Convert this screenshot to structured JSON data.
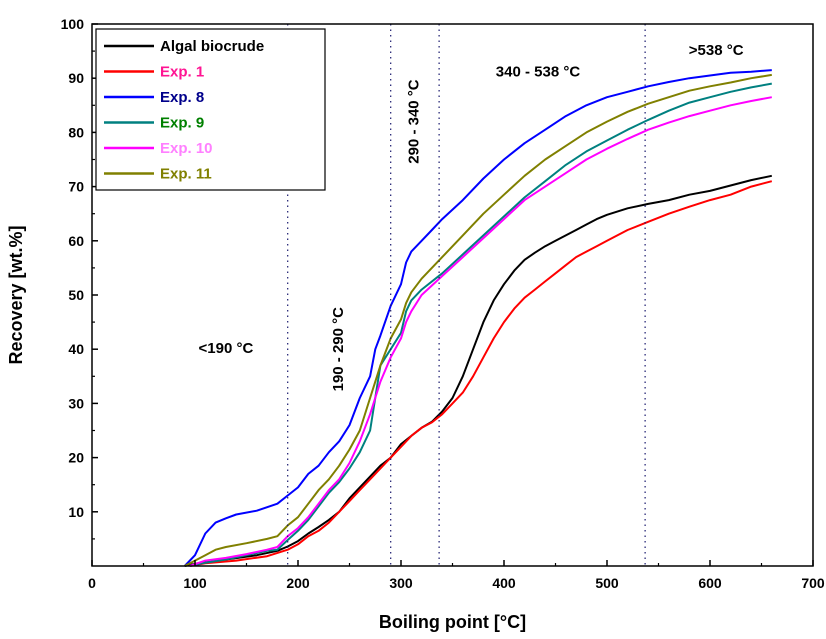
{
  "chart_data": {
    "type": "line",
    "title": "",
    "xlabel": "Boiling point [°C]",
    "ylabel": "Recovery [wt.%]",
    "xlim": [
      0,
      700
    ],
    "ylim": [
      0,
      100
    ],
    "xticks": [
      0,
      100,
      200,
      300,
      400,
      500,
      600,
      700
    ],
    "yticks": [
      10,
      20,
      30,
      40,
      50,
      60,
      70,
      80,
      90,
      100
    ],
    "grid": false,
    "legend_position": "top-left",
    "cut_lines": [
      190,
      290,
      337,
      537
    ],
    "regions": [
      {
        "label": "<190 °C",
        "x": 130,
        "y": 40,
        "rotated": false
      },
      {
        "label": "190 - 290 °C",
        "x": 240,
        "y": 40,
        "rotated": true
      },
      {
        "label": "290 - 340 °C",
        "x": 313,
        "y": 82,
        "rotated": true
      },
      {
        "label": "340 - 538 °C",
        "x": 433,
        "y": 91,
        "rotated": false
      },
      {
        "label": ">538 °C",
        "x": 606,
        "y": 95,
        "rotated": false
      }
    ],
    "series": [
      {
        "name": "Algal biocrude",
        "color": "#000000",
        "legend_color": "#000000",
        "points": [
          [
            90,
            0
          ],
          [
            100,
            0.4
          ],
          [
            130,
            1.2
          ],
          [
            160,
            2
          ],
          [
            180,
            2.8
          ],
          [
            190,
            3.6
          ],
          [
            200,
            4.6
          ],
          [
            210,
            6
          ],
          [
            220,
            7.2
          ],
          [
            230,
            8.5
          ],
          [
            240,
            10
          ],
          [
            250,
            12.5
          ],
          [
            260,
            14.5
          ],
          [
            270,
            16.5
          ],
          [
            280,
            18.5
          ],
          [
            290,
            20
          ],
          [
            300,
            22.5
          ],
          [
            310,
            24
          ],
          [
            320,
            25.5
          ],
          [
            330,
            26.6
          ],
          [
            340,
            28.5
          ],
          [
            350,
            31
          ],
          [
            360,
            35
          ],
          [
            370,
            40
          ],
          [
            380,
            45
          ],
          [
            390,
            49
          ],
          [
            400,
            52
          ],
          [
            410,
            54.5
          ],
          [
            420,
            56.5
          ],
          [
            430,
            57.8
          ],
          [
            440,
            59
          ],
          [
            450,
            60
          ],
          [
            460,
            61
          ],
          [
            470,
            62
          ],
          [
            480,
            63
          ],
          [
            490,
            64
          ],
          [
            500,
            64.8
          ],
          [
            520,
            66
          ],
          [
            540,
            66.8
          ],
          [
            560,
            67.5
          ],
          [
            580,
            68.5
          ],
          [
            600,
            69.2
          ],
          [
            620,
            70.2
          ],
          [
            640,
            71.2
          ],
          [
            660,
            72
          ]
        ]
      },
      {
        "name": "Exp. 1",
        "color": "#ff0000",
        "legend_color": "#ff1493",
        "points": [
          [
            95,
            0
          ],
          [
            110,
            0.5
          ],
          [
            140,
            1
          ],
          [
            170,
            1.8
          ],
          [
            190,
            3
          ],
          [
            200,
            4
          ],
          [
            210,
            5.5
          ],
          [
            220,
            6.5
          ],
          [
            230,
            8
          ],
          [
            240,
            10
          ],
          [
            250,
            12
          ],
          [
            260,
            14
          ],
          [
            270,
            16
          ],
          [
            280,
            18
          ],
          [
            290,
            20
          ],
          [
            300,
            22
          ],
          [
            310,
            24
          ],
          [
            320,
            25.5
          ],
          [
            330,
            26.5
          ],
          [
            340,
            28
          ],
          [
            350,
            30
          ],
          [
            360,
            32
          ],
          [
            370,
            35
          ],
          [
            380,
            38.5
          ],
          [
            390,
            42
          ],
          [
            400,
            45
          ],
          [
            410,
            47.5
          ],
          [
            420,
            49.5
          ],
          [
            430,
            51
          ],
          [
            440,
            52.5
          ],
          [
            450,
            54
          ],
          [
            460,
            55.5
          ],
          [
            470,
            57
          ],
          [
            480,
            58
          ],
          [
            490,
            59
          ],
          [
            500,
            60
          ],
          [
            510,
            61
          ],
          [
            520,
            62
          ],
          [
            540,
            63.5
          ],
          [
            560,
            65
          ],
          [
            580,
            66.3
          ],
          [
            600,
            67.5
          ],
          [
            620,
            68.5
          ],
          [
            640,
            70
          ],
          [
            660,
            71
          ]
        ]
      },
      {
        "name": "Exp. 8",
        "color": "#0000ff",
        "legend_color": "#00008b",
        "points": [
          [
            90,
            0
          ],
          [
            100,
            2
          ],
          [
            110,
            6
          ],
          [
            120,
            8
          ],
          [
            130,
            8.8
          ],
          [
            140,
            9.5
          ],
          [
            160,
            10.2
          ],
          [
            180,
            11.5
          ],
          [
            190,
            13
          ],
          [
            200,
            14.5
          ],
          [
            210,
            17
          ],
          [
            220,
            18.5
          ],
          [
            230,
            21
          ],
          [
            240,
            23
          ],
          [
            250,
            26
          ],
          [
            260,
            31
          ],
          [
            270,
            35
          ],
          [
            275,
            40
          ],
          [
            280,
            42.5
          ],
          [
            290,
            48
          ],
          [
            300,
            52
          ],
          [
            305,
            56
          ],
          [
            310,
            58
          ],
          [
            320,
            60
          ],
          [
            330,
            62
          ],
          [
            340,
            64
          ],
          [
            360,
            67.5
          ],
          [
            380,
            71.5
          ],
          [
            400,
            75
          ],
          [
            420,
            78
          ],
          [
            440,
            80.5
          ],
          [
            460,
            83
          ],
          [
            480,
            85
          ],
          [
            500,
            86.5
          ],
          [
            520,
            87.5
          ],
          [
            540,
            88.5
          ],
          [
            560,
            89.3
          ],
          [
            580,
            90
          ],
          [
            600,
            90.5
          ],
          [
            620,
            91
          ],
          [
            640,
            91.2
          ],
          [
            660,
            91.5
          ]
        ]
      },
      {
        "name": "Exp. 9",
        "color": "#008080",
        "legend_color": "#008000",
        "points": [
          [
            95,
            0
          ],
          [
            110,
            0.6
          ],
          [
            130,
            1.2
          ],
          [
            150,
            2
          ],
          [
            170,
            2.8
          ],
          [
            180,
            3
          ],
          [
            190,
            4.8
          ],
          [
            200,
            6.5
          ],
          [
            210,
            8.5
          ],
          [
            220,
            11
          ],
          [
            230,
            13.5
          ],
          [
            240,
            15.5
          ],
          [
            250,
            18
          ],
          [
            260,
            21
          ],
          [
            270,
            25
          ],
          [
            280,
            37
          ],
          [
            290,
            40
          ],
          [
            300,
            43
          ],
          [
            305,
            47
          ],
          [
            310,
            49
          ],
          [
            320,
            51
          ],
          [
            340,
            54
          ],
          [
            360,
            57.5
          ],
          [
            380,
            61
          ],
          [
            400,
            64.5
          ],
          [
            420,
            68
          ],
          [
            440,
            71
          ],
          [
            460,
            74
          ],
          [
            480,
            76.5
          ],
          [
            500,
            78.5
          ],
          [
            520,
            80.5
          ],
          [
            540,
            82.3
          ],
          [
            560,
            84
          ],
          [
            580,
            85.5
          ],
          [
            600,
            86.5
          ],
          [
            620,
            87.5
          ],
          [
            640,
            88.3
          ],
          [
            660,
            89
          ]
        ]
      },
      {
        "name": "Exp. 10",
        "color": "#ff00ff",
        "legend_color": "#ff80ff",
        "points": [
          [
            95,
            0
          ],
          [
            110,
            1
          ],
          [
            130,
            1.5
          ],
          [
            150,
            2.2
          ],
          [
            170,
            3
          ],
          [
            180,
            3.5
          ],
          [
            190,
            5.5
          ],
          [
            200,
            7
          ],
          [
            210,
            9
          ],
          [
            220,
            11.5
          ],
          [
            230,
            14
          ],
          [
            240,
            16
          ],
          [
            250,
            19
          ],
          [
            260,
            23
          ],
          [
            270,
            28
          ],
          [
            280,
            34
          ],
          [
            290,
            38.5
          ],
          [
            300,
            42
          ],
          [
            305,
            45
          ],
          [
            310,
            47
          ],
          [
            320,
            50
          ],
          [
            340,
            53.5
          ],
          [
            360,
            57
          ],
          [
            380,
            60.5
          ],
          [
            400,
            64
          ],
          [
            420,
            67.5
          ],
          [
            440,
            70
          ],
          [
            460,
            72.5
          ],
          [
            480,
            75
          ],
          [
            500,
            77
          ],
          [
            520,
            78.8
          ],
          [
            540,
            80.5
          ],
          [
            560,
            81.8
          ],
          [
            580,
            83
          ],
          [
            600,
            84
          ],
          [
            620,
            85
          ],
          [
            640,
            85.8
          ],
          [
            660,
            86.5
          ]
        ]
      },
      {
        "name": "Exp. 11",
        "color": "#808000",
        "legend_color": "#808000",
        "points": [
          [
            90,
            0
          ],
          [
            100,
            1
          ],
          [
            110,
            2
          ],
          [
            120,
            3
          ],
          [
            130,
            3.5
          ],
          [
            150,
            4.2
          ],
          [
            170,
            5
          ],
          [
            180,
            5.5
          ],
          [
            190,
            7.5
          ],
          [
            200,
            9
          ],
          [
            210,
            11.5
          ],
          [
            220,
            14
          ],
          [
            230,
            16
          ],
          [
            240,
            18.5
          ],
          [
            250,
            21.5
          ],
          [
            260,
            25
          ],
          [
            270,
            31
          ],
          [
            280,
            37
          ],
          [
            290,
            42
          ],
          [
            300,
            45.5
          ],
          [
            305,
            48.5
          ],
          [
            310,
            50.5
          ],
          [
            320,
            53
          ],
          [
            340,
            57
          ],
          [
            360,
            61
          ],
          [
            380,
            65
          ],
          [
            400,
            68.5
          ],
          [
            420,
            72
          ],
          [
            440,
            75
          ],
          [
            460,
            77.5
          ],
          [
            480,
            80
          ],
          [
            500,
            82
          ],
          [
            520,
            83.8
          ],
          [
            540,
            85.3
          ],
          [
            560,
            86.5
          ],
          [
            580,
            87.7
          ],
          [
            600,
            88.5
          ],
          [
            620,
            89.2
          ],
          [
            640,
            90
          ],
          [
            660,
            90.6
          ]
        ]
      }
    ]
  }
}
